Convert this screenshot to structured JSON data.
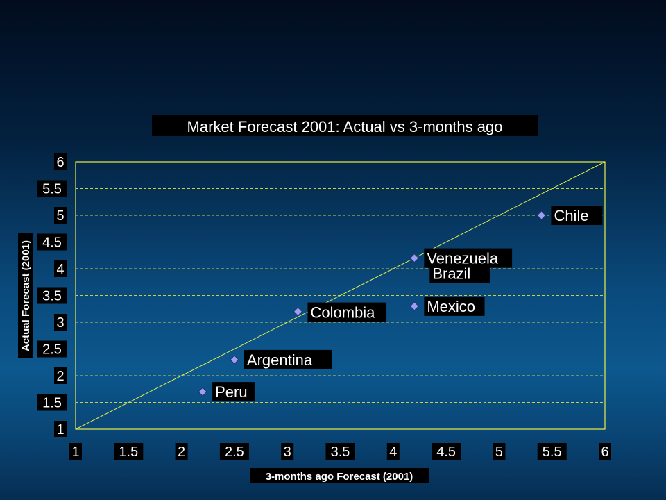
{
  "chart_data": {
    "type": "scatter",
    "title": "Market Forecast 2001: Actual vs 3-months ago",
    "xlabel": "3-months ago Forecast (2001)",
    "ylabel": "Actual Forecast (2001)",
    "xlim": [
      1,
      6
    ],
    "ylim": [
      1,
      6
    ],
    "xticks": [
      "1",
      "1.5",
      "2",
      "2.5",
      "3",
      "3.5",
      "4",
      "4.5",
      "5",
      "5.5",
      "6"
    ],
    "yticks": [
      "1",
      "1.5",
      "2",
      "2.5",
      "3",
      "3.5",
      "4",
      "4.5",
      "5",
      "5.5",
      "6"
    ],
    "grid": "horizontal dashed",
    "reference_line": {
      "type": "y=x",
      "from": [
        1,
        1
      ],
      "to": [
        6,
        6
      ]
    },
    "points": [
      {
        "label": "Peru",
        "x": 2.2,
        "y": 1.7
      },
      {
        "label": "Argentina",
        "x": 2.5,
        "y": 2.3
      },
      {
        "label": "Colombia",
        "x": 3.1,
        "y": 3.2
      },
      {
        "label": "Mexico",
        "x": 4.2,
        "y": 3.3
      },
      {
        "label": "Brazil",
        "x": 4.2,
        "y": 4.2
      },
      {
        "label": "Venezuela",
        "x": 4.2,
        "y": 4.2
      },
      {
        "label": "Chile",
        "x": 5.4,
        "y": 5.0
      }
    ],
    "colors": {
      "plot_border": "#e8ee4a",
      "grid": "#c6d04a",
      "marker_fill": "#9aa0f0",
      "marker_stroke": "#2a2f7a",
      "label_bg": "#000000",
      "label_text": "#ffffff"
    }
  }
}
